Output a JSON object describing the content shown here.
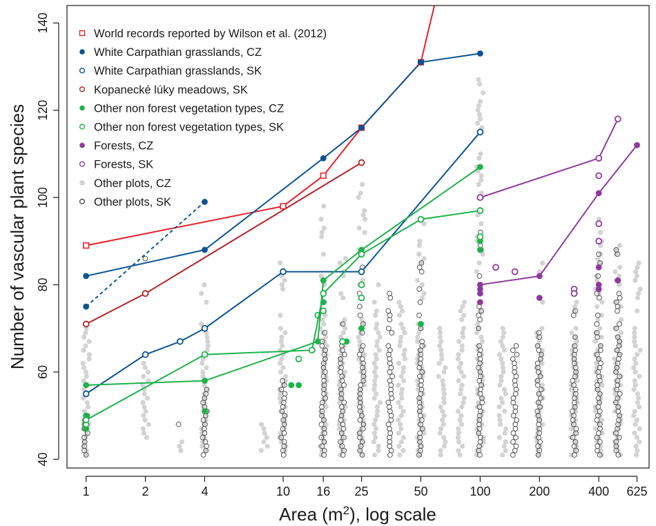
{
  "chart_data": {
    "type": "scatter",
    "title": "",
    "xlabel": "Area (m²), log scale",
    "xlabel_main": "Area (m",
    "xlabel_sup": "2",
    "xlabel_tail": "), log scale",
    "ylabel": "Number of vascular plant species",
    "x_scale": "log",
    "xlim": [
      0.8,
      720
    ],
    "ylim": [
      38,
      144
    ],
    "x_ticks": [
      1,
      2,
      4,
      10,
      16,
      25,
      50,
      100,
      200,
      400,
      625
    ],
    "x_tick_labels": [
      "1",
      "2",
      "4",
      "10",
      "16",
      "25",
      "50",
      "100",
      "200",
      "400",
      "625"
    ],
    "y_ticks": [
      40,
      60,
      80,
      100,
      120,
      140
    ],
    "y_tick_labels": [
      "40",
      "60",
      "80",
      "100",
      "120",
      "140"
    ],
    "legend_position": "top-left",
    "colors": {
      "red": "#e8202a",
      "darkred": "#b22228",
      "blue": "#0b5394",
      "green": "#1db34b",
      "purple": "#8e3a9d",
      "gray": "#d3d3d3",
      "dark": "#555555"
    },
    "series": [
      {
        "name": "World records reported by Wilson et al. (2012)",
        "marker": "open-square",
        "color": "#e8202a",
        "line": "solid",
        "x": [
          1,
          10,
          16,
          25,
          50,
          63
        ],
        "y": [
          89,
          98,
          105,
          116,
          131,
          150
        ],
        "markers_shown": [
          true,
          true,
          true,
          true,
          true,
          false
        ]
      },
      {
        "name": "White Carpathian grasslands, CZ",
        "marker": "filled-circle",
        "color": "#0b5394",
        "line": "solid",
        "x": [
          1,
          4,
          16,
          25,
          50,
          100
        ],
        "y": [
          82,
          88,
          109,
          116,
          131,
          133
        ]
      },
      {
        "name": "White Carpathian grasslands, CZ (dashed link)",
        "marker": "filled-circle",
        "color": "#0b5394",
        "line": "dashed",
        "x": [
          1,
          4
        ],
        "y": [
          75,
          99
        ]
      },
      {
        "name": "White Carpathian grasslands, SK",
        "marker": "open-circle",
        "color": "#0b5394",
        "line": "solid",
        "x": [
          1,
          2,
          3,
          4,
          10,
          25,
          100
        ],
        "y": [
          55,
          64,
          67,
          70,
          83,
          83,
          115
        ]
      },
      {
        "name": "Kopanecké lúky meadows, SK",
        "marker": "open-circle",
        "color": "#b22228",
        "line": "solid",
        "x": [
          1,
          2,
          25
        ],
        "y": [
          71,
          78,
          108
        ]
      },
      {
        "name": "Other non forest vegetation types, CZ",
        "marker": "filled-circle",
        "color": "#1db34b",
        "line": "solid",
        "x": [
          1,
          4,
          15,
          16,
          25,
          100
        ],
        "y": [
          57,
          58,
          67,
          81,
          88,
          107
        ]
      },
      {
        "name": "Other non forest vegetation types, SK",
        "marker": "open-circle",
        "color": "#1db34b",
        "line": "solid",
        "x": [
          1,
          4,
          14,
          16,
          25,
          50,
          100
        ],
        "y": [
          49,
          64,
          65,
          78,
          87,
          95,
          97
        ]
      },
      {
        "name": "Forests, CZ",
        "marker": "filled-circle",
        "color": "#8e3a9d",
        "line": "solid",
        "x": [
          100,
          200,
          400,
          625
        ],
        "y": [
          80,
          82,
          101,
          112
        ]
      },
      {
        "name": "Forests, SK",
        "marker": "open-circle",
        "color": "#8e3a9d",
        "line": "solid",
        "x": [
          100,
          400,
          500
        ],
        "y": [
          100,
          109,
          118
        ]
      },
      {
        "name": "Other plots, CZ",
        "marker": "filled-circle",
        "color": "#d3d3d3",
        "line": "none"
      },
      {
        "name": "Other plots, SK",
        "marker": "open-circle",
        "color": "#555555",
        "line": "none"
      }
    ],
    "extra_points": [
      {
        "series": "Other non forest vegetation types, CZ",
        "marker": "filled-circle",
        "color": "#1db34b",
        "x": [
          1,
          1,
          4,
          11,
          12,
          16,
          16,
          21,
          25,
          50,
          100,
          100
        ],
        "y": [
          50,
          47,
          51,
          57,
          57,
          76,
          78,
          67,
          70,
          71,
          90,
          88
        ]
      },
      {
        "series": "Other non forest vegetation types, SK",
        "marker": "open-circle",
        "color": "#1db34b",
        "x": [
          1,
          12,
          15,
          16,
          20,
          25,
          25,
          100
        ],
        "y": [
          48,
          63,
          73,
          74,
          67,
          77,
          80,
          91
        ]
      },
      {
        "series": "Forests, CZ",
        "marker": "filled-circle",
        "color": "#8e3a9d",
        "x": [
          100,
          100,
          100,
          200,
          400,
          400,
          400,
          500
        ],
        "y": [
          78,
          76,
          79,
          77,
          84,
          80,
          79,
          81
        ]
      },
      {
        "series": "Forests, SK",
        "marker": "open-circle",
        "color": "#8e3a9d",
        "x": [
          120,
          150,
          300,
          300,
          400,
          400,
          400
        ],
        "y": [
          84,
          83,
          79,
          78,
          105,
          94,
          90
        ]
      }
    ],
    "background_point_columns": {
      "gray_filled": [
        {
          "x": 1,
          "y_min": 41,
          "y_max": 70
        },
        {
          "x": 2,
          "y_min": 45,
          "y_max": 62
        },
        {
          "x": 3,
          "y_min": 42,
          "y_max": 44
        },
        {
          "x": 4,
          "y_min": 42,
          "y_max": 80
        },
        {
          "x": 8,
          "y_min": 42,
          "y_max": 48
        },
        {
          "x": 10,
          "y_min": 42,
          "y_max": 86
        },
        {
          "x": 16,
          "y_min": 41,
          "y_max": 99
        },
        {
          "x": 20,
          "y_min": 41,
          "y_max": 86
        },
        {
          "x": 25,
          "y_min": 41,
          "y_max": 103
        },
        {
          "x": 30,
          "y_min": 41,
          "y_max": 80
        },
        {
          "x": 40,
          "y_min": 41,
          "y_max": 77
        },
        {
          "x": 50,
          "y_min": 41,
          "y_max": 95
        },
        {
          "x": 64,
          "y_min": 41,
          "y_max": 74
        },
        {
          "x": 80,
          "y_min": 41,
          "y_max": 76
        },
        {
          "x": 100,
          "y_min": 41,
          "y_max": 131
        },
        {
          "x": 130,
          "y_min": 41,
          "y_max": 72
        },
        {
          "x": 200,
          "y_min": 41,
          "y_max": 85
        },
        {
          "x": 300,
          "y_min": 41,
          "y_max": 76
        },
        {
          "x": 400,
          "y_min": 41,
          "y_max": 96
        },
        {
          "x": 500,
          "y_min": 41,
          "y_max": 89
        },
        {
          "x": 625,
          "y_min": 41,
          "y_max": 86
        }
      ],
      "dark_open": [
        {
          "x": 1,
          "y_min": 41,
          "y_max": 50
        },
        {
          "x": 2,
          "y_min": 86,
          "y_max": 87
        },
        {
          "x": 3,
          "y_min": 48,
          "y_max": 48
        },
        {
          "x": 4,
          "y_min": 41,
          "y_max": 56
        },
        {
          "x": 10,
          "y_min": 41,
          "y_max": 58
        },
        {
          "x": 16,
          "y_min": 41,
          "y_max": 72
        },
        {
          "x": 20,
          "y_min": 41,
          "y_max": 71
        },
        {
          "x": 25,
          "y_min": 41,
          "y_max": 84
        },
        {
          "x": 35,
          "y_min": 41,
          "y_max": 79
        },
        {
          "x": 50,
          "y_min": 41,
          "y_max": 87
        },
        {
          "x": 100,
          "y_min": 41,
          "y_max": 92
        },
        {
          "x": 150,
          "y_min": 41,
          "y_max": 68
        },
        {
          "x": 200,
          "y_min": 41,
          "y_max": 70
        },
        {
          "x": 300,
          "y_min": 41,
          "y_max": 74
        },
        {
          "x": 400,
          "y_min": 41,
          "y_max": 87
        },
        {
          "x": 500,
          "y_min": 41,
          "y_max": 89
        }
      ]
    }
  }
}
